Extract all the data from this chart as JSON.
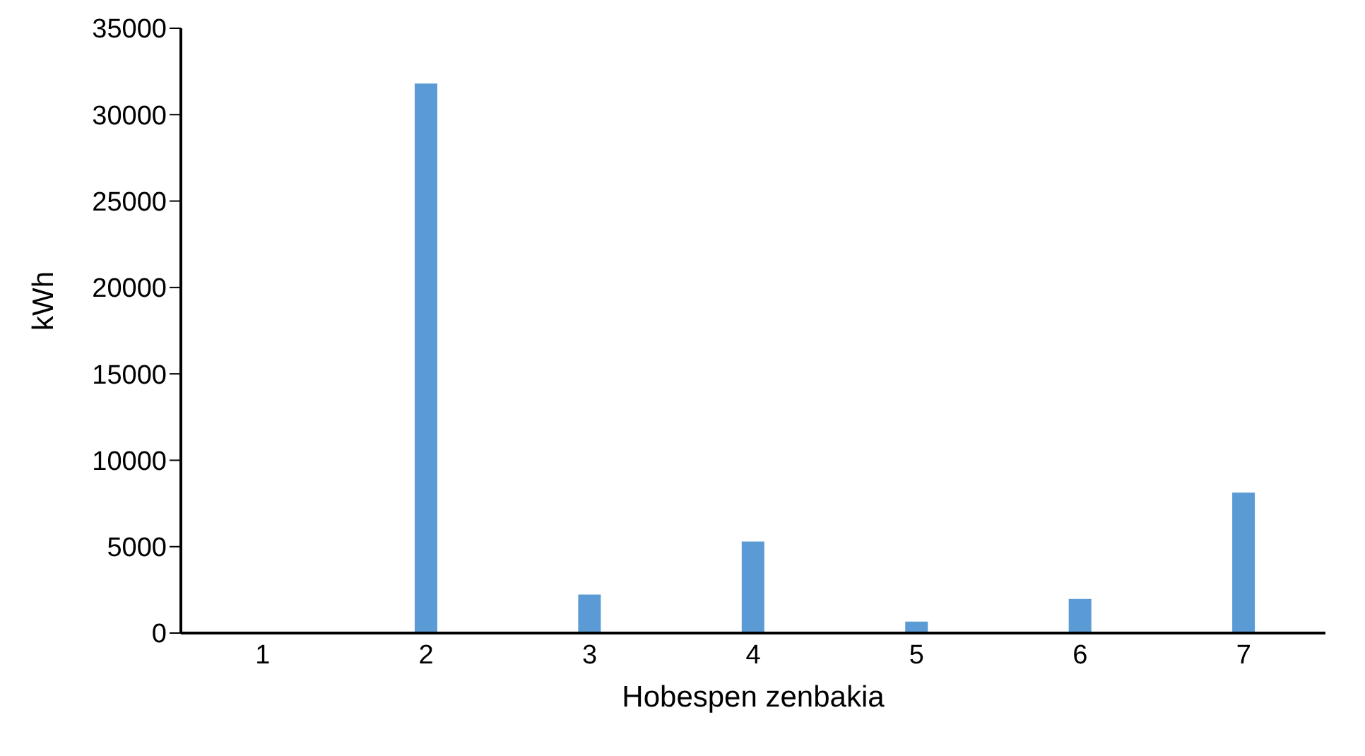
{
  "chart_data": {
    "type": "bar",
    "xlabel": "Hobespen zenbakia",
    "ylabel": "kWh",
    "categories": [
      "1",
      "2",
      "3",
      "4",
      "5",
      "6",
      "7"
    ],
    "values": [
      0,
      31800,
      2230,
      5300,
      660,
      1970,
      8130
    ],
    "color": "#5b9bd5",
    "ylim": [
      0,
      35000
    ],
    "yticks": [
      0,
      5000,
      10000,
      15000,
      20000,
      25000,
      30000,
      35000
    ],
    "grid": false
  }
}
